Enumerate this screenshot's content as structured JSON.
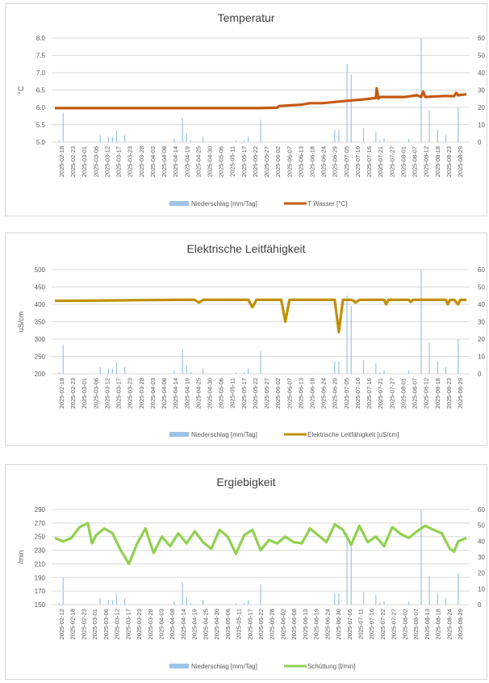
{
  "chart_data": [
    {
      "type": "line",
      "title": "Temperatur",
      "ylabel": "°C",
      "ylim": [
        5.0,
        8.0
      ],
      "yticks": [
        "5.0",
        "5.5",
        "6.0",
        "6.5",
        "7.0",
        "7.5",
        "8.0"
      ],
      "y2lim": [
        0,
        60
      ],
      "y2ticks": [
        "0",
        "10",
        "20",
        "30",
        "40",
        "50",
        "60"
      ],
      "xticks": [
        "2025-02-18",
        "2025-02-23",
        "2025-03-01",
        "2025-03-06",
        "2025-03-12",
        "2025-03-17",
        "2025-03-23",
        "2025-03-28",
        "2025-04-03",
        "2025-04-08",
        "2025-04-14",
        "2025-04-19",
        "2025-04-25",
        "2025-04-30",
        "2025-05-06",
        "2025-05-11",
        "2025-05-17",
        "2025-05-22",
        "2025-05-27",
        "2025-06-02",
        "2025-06-07",
        "2025-06-13",
        "2025-06-18",
        "2025-06-24",
        "2025-06-29",
        "2025-07-05",
        "2025-07-10",
        "2025-07-16",
        "2025-07-21",
        "2025-07-27",
        "2025-08-01",
        "2025-08-07",
        "2025-08-12",
        "2025-08-18",
        "2025-08-23",
        "2025-08-29"
      ],
      "legend": "bottom",
      "series": [
        {
          "name": "Niederschlag [mm/Tag]",
          "kind": "bar",
          "axis": "right",
          "color": "#9dc3e6",
          "points": [
            [
              0.01,
              1
            ],
            [
              0.02,
              17
            ],
            [
              0.11,
              4
            ],
            [
              0.13,
              3
            ],
            [
              0.14,
              3
            ],
            [
              0.15,
              7
            ],
            [
              0.17,
              4
            ],
            [
              0.29,
              2
            ],
            [
              0.31,
              14
            ],
            [
              0.32,
              5
            ],
            [
              0.33,
              1
            ],
            [
              0.36,
              3
            ],
            [
              0.44,
              1
            ],
            [
              0.46,
              1
            ],
            [
              0.47,
              3
            ],
            [
              0.5,
              13
            ],
            [
              0.68,
              7
            ],
            [
              0.69,
              7
            ],
            [
              0.71,
              45
            ],
            [
              0.72,
              39
            ],
            [
              0.75,
              8
            ],
            [
              0.78,
              6
            ],
            [
              0.79,
              1
            ],
            [
              0.8,
              2
            ],
            [
              0.86,
              2
            ],
            [
              0.89,
              60
            ],
            [
              0.91,
              18
            ],
            [
              0.93,
              7
            ],
            [
              0.95,
              4
            ],
            [
              0.98,
              20
            ]
          ]
        }
      ],
      "line": {
        "name": "T Wasser [°C]",
        "color": "#c55a11",
        "x": [
          0,
          0.1,
          0.2,
          0.3,
          0.4,
          0.5,
          0.54,
          0.545,
          0.6,
          0.62,
          0.65,
          0.7,
          0.75,
          0.78,
          0.782,
          0.786,
          0.79,
          0.85,
          0.88,
          0.89,
          0.895,
          0.9,
          0.95,
          0.97,
          0.975,
          0.98,
          1.0
        ],
        "y": [
          5.98,
          5.98,
          5.98,
          5.98,
          5.98,
          5.98,
          5.99,
          6.04,
          6.08,
          6.12,
          6.12,
          6.18,
          6.23,
          6.27,
          6.55,
          6.25,
          6.3,
          6.3,
          6.35,
          6.3,
          6.45,
          6.3,
          6.33,
          6.32,
          6.42,
          6.35,
          6.38
        ]
      }
    },
    {
      "type": "line",
      "title": "Elektrische Leitfähigkeit",
      "ylabel": "uS/cm",
      "ylim": [
        200,
        500
      ],
      "yticks": [
        "200",
        "250",
        "300",
        "350",
        "400",
        "450",
        "500"
      ],
      "y2lim": [
        0,
        60
      ],
      "y2ticks": [
        "0",
        "10",
        "20",
        "30",
        "40",
        "50",
        "60"
      ],
      "xticks": [
        "2025-02-18",
        "2025-02-23",
        "2025-03-01",
        "2025-03-06",
        "2025-03-12",
        "2025-03-17",
        "2025-03-23",
        "2025-03-28",
        "2025-04-03",
        "2025-04-08",
        "2025-04-14",
        "2025-04-19",
        "2025-04-25",
        "2025-04-30",
        "2025-05-06",
        "2025-05-11",
        "2025-05-17",
        "2025-05-22",
        "2025-05-27",
        "2025-06-02",
        "2025-06-07",
        "2025-06-13",
        "2025-06-18",
        "2025-06-24",
        "2025-06-29",
        "2025-07-05",
        "2025-07-10",
        "2025-07-16",
        "2025-07-21",
        "2025-07-27",
        "2025-08-01",
        "2025-08-07",
        "2025-08-12",
        "2025-08-18",
        "2025-08-23",
        "2025-08-29"
      ],
      "legend": "bottom",
      "series": [
        {
          "name": "Niederschlag [mm/Tag]",
          "kind": "bar",
          "axis": "right",
          "color": "#9dc3e6",
          "points": [
            [
              0.01,
              1
            ],
            [
              0.02,
              17
            ],
            [
              0.11,
              4
            ],
            [
              0.13,
              3
            ],
            [
              0.14,
              3
            ],
            [
              0.15,
              7
            ],
            [
              0.17,
              4
            ],
            [
              0.29,
              2
            ],
            [
              0.31,
              14
            ],
            [
              0.32,
              5
            ],
            [
              0.33,
              1
            ],
            [
              0.36,
              3
            ],
            [
              0.44,
              1
            ],
            [
              0.46,
              1
            ],
            [
              0.47,
              3
            ],
            [
              0.5,
              13
            ],
            [
              0.68,
              7
            ],
            [
              0.69,
              7
            ],
            [
              0.71,
              45
            ],
            [
              0.72,
              39
            ],
            [
              0.75,
              8
            ],
            [
              0.78,
              6
            ],
            [
              0.79,
              1
            ],
            [
              0.8,
              2
            ],
            [
              0.86,
              2
            ],
            [
              0.89,
              60
            ],
            [
              0.91,
              18
            ],
            [
              0.93,
              7
            ],
            [
              0.95,
              4
            ],
            [
              0.98,
              20
            ]
          ]
        }
      ],
      "line": {
        "name": "Elektrische Leitfähigkeit [uS/cm]",
        "color": "#bf9000",
        "x": [
          0,
          0.1,
          0.2,
          0.3,
          0.34,
          0.35,
          0.36,
          0.4,
          0.47,
          0.48,
          0.49,
          0.5,
          0.55,
          0.56,
          0.57,
          0.6,
          0.68,
          0.69,
          0.7,
          0.72,
          0.725,
          0.73,
          0.74,
          0.8,
          0.805,
          0.81,
          0.82,
          0.86,
          0.865,
          0.87,
          0.9,
          0.95,
          0.955,
          0.96,
          0.97,
          0.98,
          0.985,
          0.99,
          1.0
        ],
        "y": [
          410,
          411,
          412,
          413,
          413,
          405,
          413,
          413,
          413,
          392,
          413,
          413,
          413,
          350,
          413,
          413,
          413,
          320,
          413,
          413,
          411,
          405,
          413,
          413,
          400,
          413,
          413,
          413,
          407,
          413,
          413,
          413,
          400,
          413,
          413,
          400,
          413,
          413,
          413
        ]
      }
    },
    {
      "type": "line",
      "title": "Ergiebigkeit",
      "ylabel": "/min",
      "ylim": [
        150,
        290
      ],
      "yticks": [
        "150",
        "170",
        "190",
        "210",
        "230",
        "250",
        "270",
        "290"
      ],
      "y2lim": [
        0,
        60
      ],
      "y2ticks": [
        "0",
        "10",
        "20",
        "30",
        "40",
        "50",
        "60"
      ],
      "xticks": [
        "2025-02-12",
        "2025-02-18",
        "2025-02-23",
        "2025-03-01",
        "2025-03-06",
        "2025-03-12",
        "2025-03-17",
        "2025-03-23",
        "2025-03-28",
        "2025-04-03",
        "2025-04-08",
        "2025-04-14",
        "2025-04-19",
        "2025-04-25",
        "2025-04-30",
        "2025-05-06",
        "2025-05-11",
        "2025-05-17",
        "2025-05-22",
        "2025-05-28",
        "2025-06-02",
        "2025-06-08",
        "2025-06-13",
        "2025-06-19",
        "2025-06-24",
        "2025-06-30",
        "2025-07-05",
        "2025-07-11",
        "2025-07-16",
        "2025-07-22",
        "2025-07-27",
        "2025-08-02",
        "2025-08-07",
        "2025-08-13",
        "2025-08-18",
        "2025-08-24",
        "2025-08-29"
      ],
      "legend": "bottom",
      "series": [
        {
          "name": "Niederschlag [mm/Tag]",
          "kind": "bar",
          "axis": "right",
          "color": "#9dc3e6",
          "points": [
            [
              0.01,
              1
            ],
            [
              0.02,
              17
            ],
            [
              0.11,
              4
            ],
            [
              0.13,
              3
            ],
            [
              0.14,
              3
            ],
            [
              0.15,
              7
            ],
            [
              0.17,
              4
            ],
            [
              0.29,
              2
            ],
            [
              0.31,
              14
            ],
            [
              0.32,
              5
            ],
            [
              0.33,
              1
            ],
            [
              0.36,
              3
            ],
            [
              0.44,
              1
            ],
            [
              0.46,
              1
            ],
            [
              0.47,
              3
            ],
            [
              0.5,
              13
            ],
            [
              0.68,
              7
            ],
            [
              0.69,
              7
            ],
            [
              0.71,
              45
            ],
            [
              0.72,
              39
            ],
            [
              0.75,
              8
            ],
            [
              0.78,
              6
            ],
            [
              0.79,
              1
            ],
            [
              0.8,
              2
            ],
            [
              0.86,
              2
            ],
            [
              0.89,
              60
            ],
            [
              0.91,
              18
            ],
            [
              0.93,
              7
            ],
            [
              0.95,
              4
            ],
            [
              0.98,
              20
            ]
          ]
        }
      ],
      "line": {
        "name": "Schüttung [l/min]",
        "color": "#92d050",
        "x": [
          0,
          0.02,
          0.04,
          0.06,
          0.08,
          0.09,
          0.1,
          0.12,
          0.14,
          0.16,
          0.18,
          0.2,
          0.22,
          0.24,
          0.26,
          0.28,
          0.3,
          0.32,
          0.34,
          0.36,
          0.38,
          0.4,
          0.42,
          0.44,
          0.46,
          0.48,
          0.5,
          0.52,
          0.54,
          0.56,
          0.58,
          0.6,
          0.62,
          0.64,
          0.66,
          0.68,
          0.7,
          0.72,
          0.74,
          0.76,
          0.78,
          0.8,
          0.82,
          0.84,
          0.86,
          0.88,
          0.9,
          0.92,
          0.94,
          0.96,
          0.97,
          0.98,
          1.0
        ],
        "y": [
          248,
          243,
          248,
          264,
          270,
          240,
          252,
          262,
          255,
          230,
          210,
          240,
          262,
          226,
          250,
          236,
          255,
          240,
          258,
          242,
          232,
          260,
          250,
          225,
          252,
          260,
          230,
          245,
          240,
          250,
          242,
          240,
          262,
          252,
          242,
          268,
          260,
          238,
          266,
          242,
          250,
          236,
          264,
          254,
          248,
          258,
          266,
          260,
          255,
          232,
          228,
          243,
          248
        ]
      }
    }
  ],
  "legend_labels": {
    "precip": "Niederschlag [mm/Tag]"
  }
}
